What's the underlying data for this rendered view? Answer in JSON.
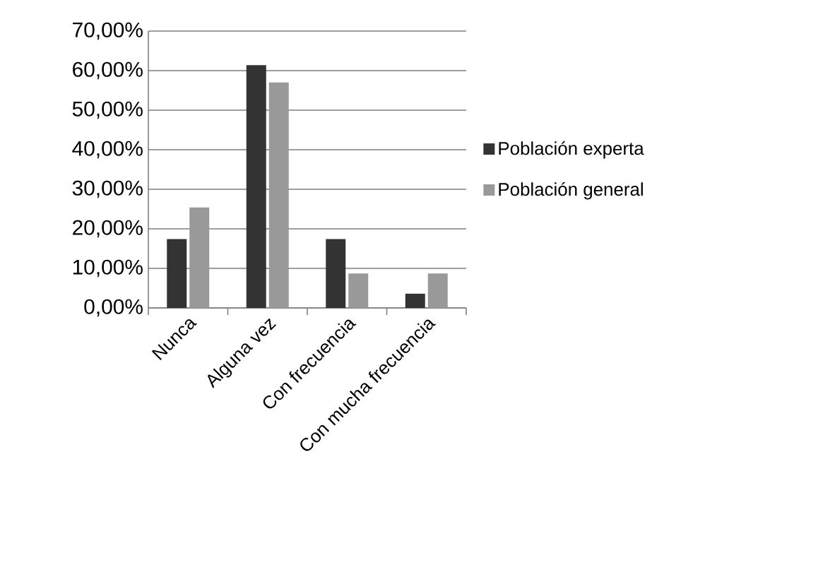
{
  "chart_data": {
    "type": "bar",
    "categories": [
      "Nunca",
      "Alguna vez",
      "Con frecuencia",
      "Con mucha frecuencia"
    ],
    "series": [
      {
        "name": "Población experta",
        "color": "#333333",
        "values": [
          17.4,
          61.4,
          17.4,
          3.6
        ]
      },
      {
        "name": "Población general",
        "color": "#999999",
        "values": [
          25.4,
          57.0,
          8.7,
          8.7
        ]
      }
    ],
    "ylim": [
      0,
      70
    ],
    "yticks": [
      {
        "value": 0,
        "label": "0,00%"
      },
      {
        "value": 10,
        "label": "10,00%"
      },
      {
        "value": 20,
        "label": "20,00%"
      },
      {
        "value": 30,
        "label": "30,00%"
      },
      {
        "value": 40,
        "label": "40,00%"
      },
      {
        "value": 50,
        "label": "50,00%"
      },
      {
        "value": 60,
        "label": "60,00%"
      },
      {
        "value": 70,
        "label": "70,00%"
      }
    ],
    "grid": "y",
    "legend": "right"
  }
}
